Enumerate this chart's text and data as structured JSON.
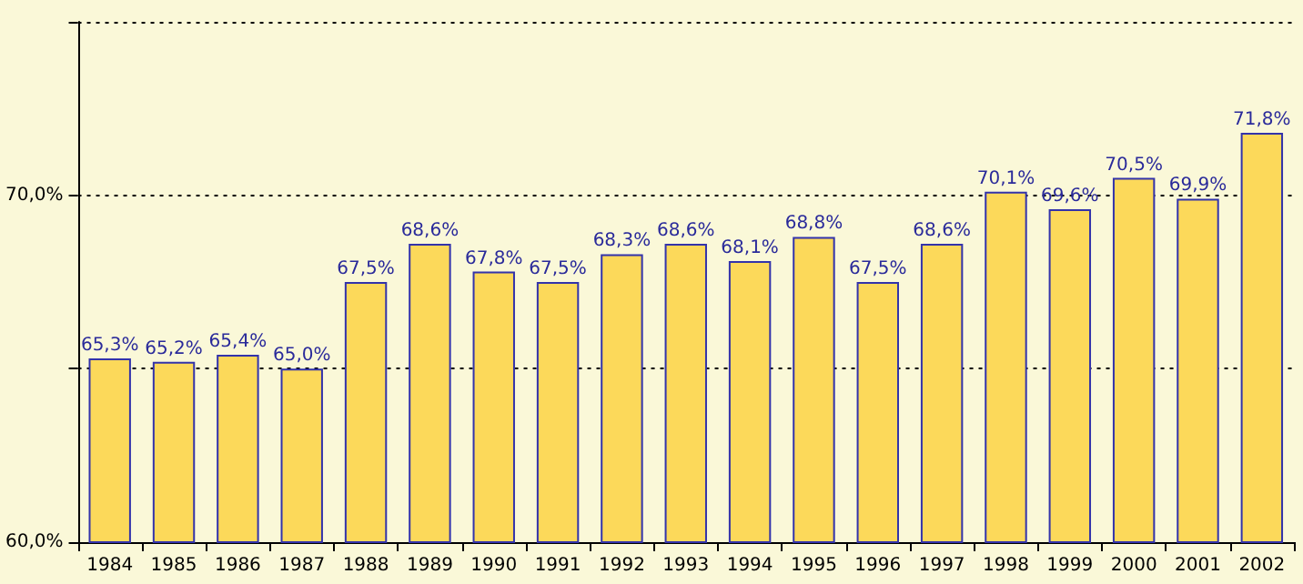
{
  "chart_data": {
    "type": "bar",
    "categories": [
      "1984",
      "1985",
      "1986",
      "1987",
      "1988",
      "1989",
      "1990",
      "1991",
      "1992",
      "1993",
      "1994",
      "1995",
      "1996",
      "1997",
      "1998",
      "1999",
      "2000",
      "2001",
      "2002"
    ],
    "series": [
      {
        "color": "#fcd95a",
        "values": [
          65.3,
          65.2,
          65.4,
          65.0,
          67.5,
          68.6,
          67.8,
          67.5,
          68.3,
          68.6,
          68.1,
          68.8,
          67.5,
          68.6,
          70.1,
          69.6,
          70.5,
          69.9,
          71.8
        ],
        "value_labels": [
          "65,3%",
          "65,2%",
          "65,4%",
          "65,0%",
          "67,5%",
          "68,6%",
          "67,8%",
          "67,5%",
          "68,3%",
          "68,6%",
          "68,1%",
          "68,8%",
          "67,5%",
          "68,6%",
          "70,1%",
          "69,6%",
          "70,5%",
          "69,9%",
          "71,8%"
        ]
      }
    ],
    "ylim": [
      60,
      75
    ],
    "yticks": [
      {
        "value": 60,
        "label": "60,0%"
      },
      {
        "value": 65,
        "label": null
      },
      {
        "value": 70,
        "label": "70,0%"
      },
      {
        "value": 75,
        "label": null
      }
    ],
    "grid": "y"
  }
}
